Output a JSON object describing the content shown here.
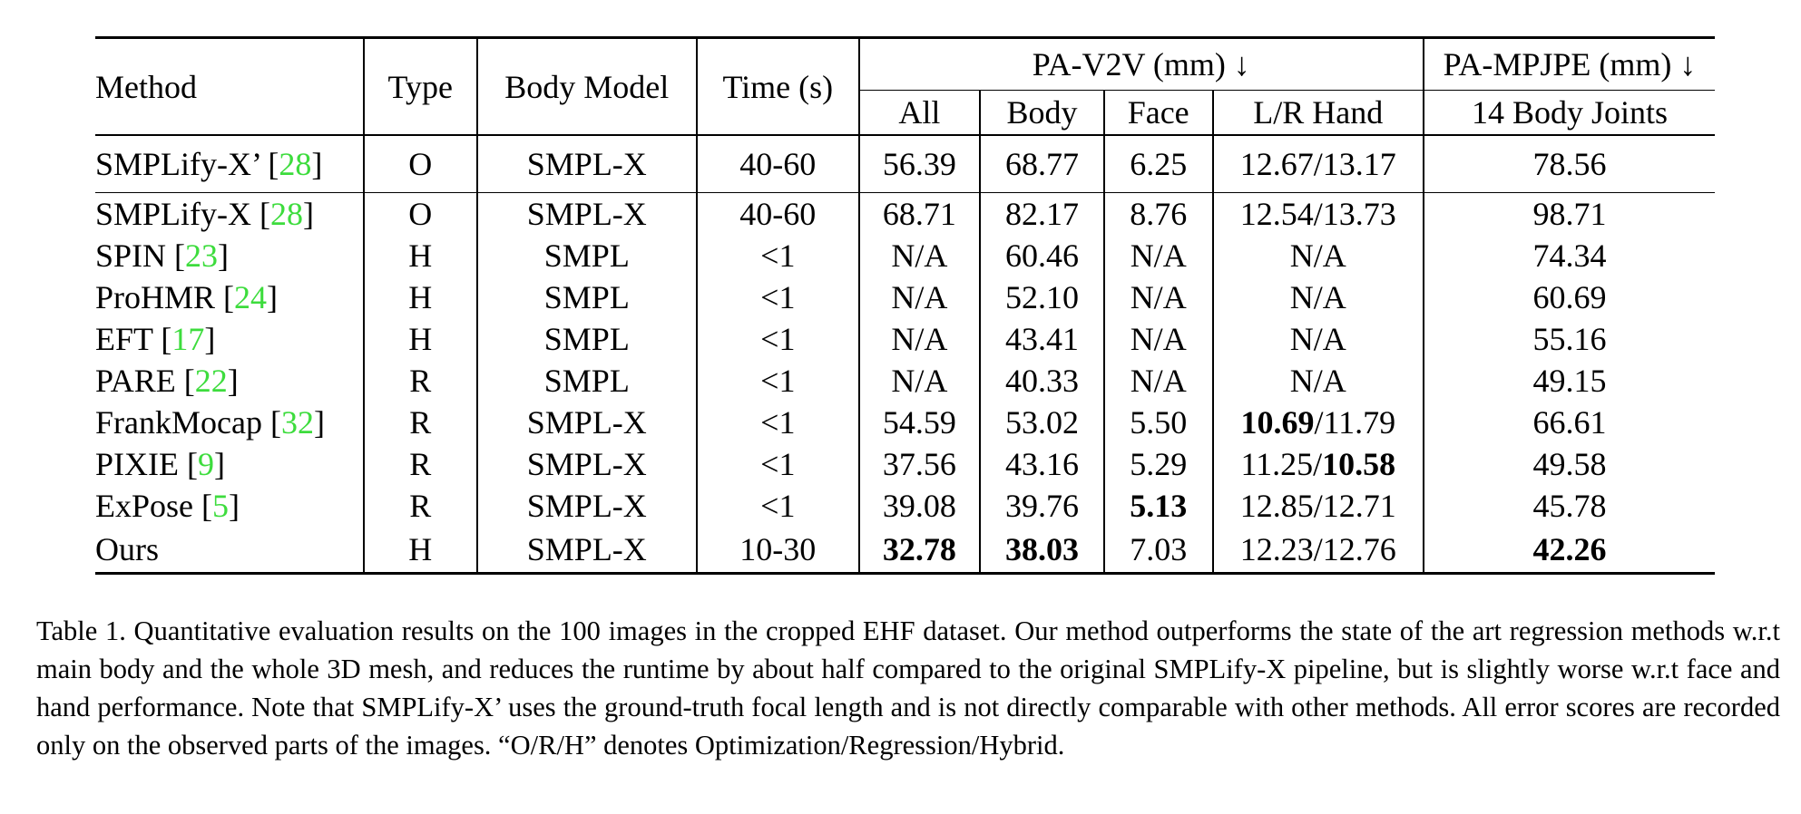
{
  "table": {
    "headers": {
      "method": "Method",
      "type": "Type",
      "body_model": "Body Model",
      "time": "Time (s)",
      "pa_v2v": "PA-V2V (mm) ↓",
      "pa_mpjpe": "PA-MPJPE (mm) ↓",
      "all": "All",
      "body": "Body",
      "face": "Face",
      "hand": "L/R Hand",
      "joints": "14 Body Joints"
    },
    "rows": [
      {
        "method": "SMPLify-X’ [",
        "cite": "28",
        "close": "]",
        "type": "O",
        "model": "SMPL-X",
        "time": "40-60",
        "all": "56.39",
        "body": "68.77",
        "face": "6.25",
        "hand_l": "12.67",
        "hand_r": "13.17",
        "joints": "78.56"
      },
      {
        "method": "SMPLify-X [",
        "cite": "28",
        "close": "]",
        "type": "O",
        "model": "SMPL-X",
        "time": "40-60",
        "all": "68.71",
        "body": "82.17",
        "face": "8.76",
        "hand_l": "12.54",
        "hand_r": "13.73",
        "joints": "98.71"
      },
      {
        "method": "SPIN [",
        "cite": "23",
        "close": "]",
        "type": "H",
        "model": "SMPL",
        "time": "<1",
        "all": "N/A",
        "body": "60.46",
        "face": "N/A",
        "hand": "N/A",
        "joints": "74.34"
      },
      {
        "method": "ProHMR [",
        "cite": "24",
        "close": "]",
        "type": "H",
        "model": "SMPL",
        "time": "<1",
        "all": "N/A",
        "body": "52.10",
        "face": "N/A",
        "hand": "N/A",
        "joints": "60.69"
      },
      {
        "method": "EFT [",
        "cite": "17",
        "close": "]",
        "type": "H",
        "model": "SMPL",
        "time": "<1",
        "all": "N/A",
        "body": "43.41",
        "face": "N/A",
        "hand": "N/A",
        "joints": "55.16"
      },
      {
        "method": "PARE [",
        "cite": "22",
        "close": "]",
        "type": "R",
        "model": "SMPL",
        "time": "<1",
        "all": "N/A",
        "body": "40.33",
        "face": "N/A",
        "hand": "N/A",
        "joints": "49.15"
      },
      {
        "method": "FrankMocap [",
        "cite": "32",
        "close": "]",
        "type": "R",
        "model": "SMPL-X",
        "time": "<1",
        "all": "54.59",
        "body": "53.02",
        "face": "5.50",
        "hand_l": "10.69",
        "hand_r": "11.79",
        "joints": "66.61"
      },
      {
        "method": "PIXIE [",
        "cite": "9",
        "close": "]",
        "type": "R",
        "model": "SMPL-X",
        "time": "<1",
        "all": "37.56",
        "body": "43.16",
        "face": "5.29",
        "hand_l": "11.25",
        "hand_r": "10.58",
        "joints": "49.58"
      },
      {
        "method": "ExPose [",
        "cite": "5",
        "close": "]",
        "type": "R",
        "model": "SMPL-X",
        "time": "<1",
        "all": "39.08",
        "body": "39.76",
        "face": "5.13",
        "hand_l": "12.85",
        "hand_r": "12.71",
        "joints": "45.78"
      },
      {
        "method": "Ours",
        "type": "H",
        "model": "SMPL-X",
        "time": "10-30",
        "all": "32.78",
        "body": "38.03",
        "face": "7.03",
        "hand_l": "12.23",
        "hand_r": "12.76",
        "joints": "42.26"
      }
    ]
  },
  "caption": "Table 1.  Quantitative evaluation results on the 100 images in the cropped EHF dataset.  Our method outperforms the state of the art regression methods w.r.t main body and the whole 3D mesh, and reduces the runtime by about half compared to the original SMPLify-X pipeline, but is slightly worse w.r.t face and hand performance.  Note that SMPLify-X’ uses the ground-truth focal length and is not directly comparable with other methods.  All error scores are recorded only on the observed parts of the images.  “O/R/H” denotes Optimization/Regression/Hybrid."
}
